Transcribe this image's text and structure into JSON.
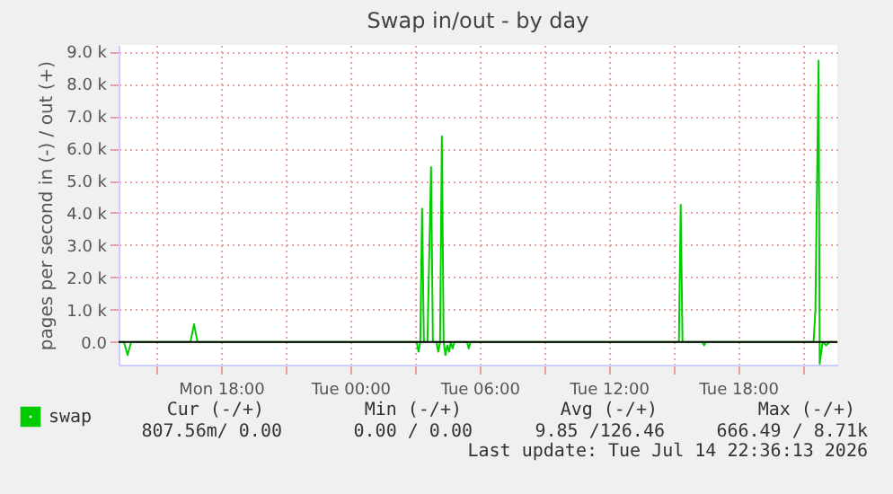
{
  "chart_data": {
    "type": "line",
    "title": "Swap in/out - by day",
    "ylabel": "pages per second in (-) / out (+)",
    "x": [
      "2026-07-13T13:15",
      "2026-07-13T13:30",
      "2026-07-13T13:40",
      "2026-07-13T13:50",
      "2026-07-13T16:35",
      "2026-07-13T16:45",
      "2026-07-13T16:55",
      "2026-07-14T03:05",
      "2026-07-14T03:10",
      "2026-07-14T03:15",
      "2026-07-14T03:20",
      "2026-07-14T03:25",
      "2026-07-14T03:35",
      "2026-07-14T03:45",
      "2026-07-14T03:50",
      "2026-07-14T04:00",
      "2026-07-14T04:05",
      "2026-07-14T04:10",
      "2026-07-14T04:15",
      "2026-07-14T04:20",
      "2026-07-14T04:25",
      "2026-07-14T04:30",
      "2026-07-14T04:35",
      "2026-07-14T04:40",
      "2026-07-14T04:45",
      "2026-07-14T04:50",
      "2026-07-14T05:25",
      "2026-07-14T05:30",
      "2026-07-14T05:35",
      "2026-07-14T15:15",
      "2026-07-14T15:20",
      "2026-07-14T15:25",
      "2026-07-14T15:35",
      "2026-07-14T16:20",
      "2026-07-14T16:25",
      "2026-07-14T16:30",
      "2026-07-14T21:30",
      "2026-07-14T21:35",
      "2026-07-14T21:44",
      "2026-07-14T21:47",
      "2026-07-14T21:55",
      "2026-07-14T22:05",
      "2026-07-14T22:15",
      "2026-07-14T22:35"
    ],
    "series": [
      {
        "name": "swap",
        "color": "#00cc00",
        "values": [
          0,
          0,
          -400,
          0,
          0,
          550,
          0,
          0,
          -300,
          0,
          4130,
          0,
          0,
          5420,
          0,
          0,
          -300,
          0,
          6370,
          0,
          -400,
          -100,
          -300,
          0,
          -200,
          0,
          0,
          -200,
          0,
          0,
          4250,
          0,
          0,
          0,
          -100,
          0,
          0,
          1000,
          8710,
          -670,
          0,
          -100,
          0,
          0
        ]
      }
    ],
    "xlim": [
      "2026-07-13T13:15",
      "2026-07-14T22:36"
    ],
    "ylim": [
      -700,
      9200
    ],
    "xticks": [
      {
        "value": "2026-07-13T15:00",
        "label": null
      },
      {
        "value": "2026-07-13T18:00",
        "label": "Mon 18:00"
      },
      {
        "value": "2026-07-13T21:00",
        "label": null
      },
      {
        "value": "2026-07-14T00:00",
        "label": "Tue 00:00"
      },
      {
        "value": "2026-07-14T03:00",
        "label": null
      },
      {
        "value": "2026-07-14T06:00",
        "label": "Tue 06:00"
      },
      {
        "value": "2026-07-14T09:00",
        "label": null
      },
      {
        "value": "2026-07-14T12:00",
        "label": "Tue 12:00"
      },
      {
        "value": "2026-07-14T15:00",
        "label": null
      },
      {
        "value": "2026-07-14T18:00",
        "label": "Tue 18:00"
      },
      {
        "value": "2026-07-14T21:00",
        "label": null
      }
    ],
    "yticks": [
      {
        "value": 0,
        "label": "0.0"
      },
      {
        "value": 1000,
        "label": "1.0 k"
      },
      {
        "value": 2000,
        "label": "2.0 k"
      },
      {
        "value": 3000,
        "label": "3.0 k"
      },
      {
        "value": 4000,
        "label": "4.0 k"
      },
      {
        "value": 5000,
        "label": "5.0 k"
      },
      {
        "value": 6000,
        "label": "6.0 k"
      },
      {
        "value": 7000,
        "label": "7.0 k"
      },
      {
        "value": 8000,
        "label": "8.0 k"
      },
      {
        "value": 9000,
        "label": "9.0 k"
      }
    ],
    "ref_lines": [
      {
        "axis": "y",
        "value": 0,
        "color": "#000000"
      }
    ],
    "grid": true,
    "legend": "bottom left",
    "marker": "none",
    "line_style": "solid",
    "annotations": [
      "Cur (-/+)",
      "Min (-/+)",
      "Avg (-/+)",
      "Max (-/+)",
      "807.56m/  0.00",
      "0.00 /  0.00",
      "9.85 /126.46",
      "666.49 /  8.71k",
      "Last update: Tue Jul 14 22:36:13 2026"
    ]
  }
}
